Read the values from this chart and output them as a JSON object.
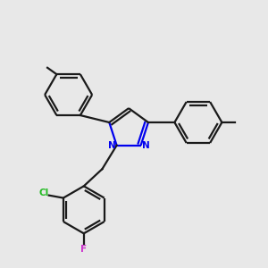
{
  "background_color": "#e8e8e8",
  "bond_color": "#1a1a1a",
  "N_color": "#0000ee",
  "Cl_color": "#22bb22",
  "F_color": "#cc33cc",
  "line_width": 1.6,
  "figsize": [
    3.0,
    3.0
  ],
  "dpi": 100,
  "xlim": [
    0,
    10
  ],
  "ylim": [
    0,
    10
  ]
}
